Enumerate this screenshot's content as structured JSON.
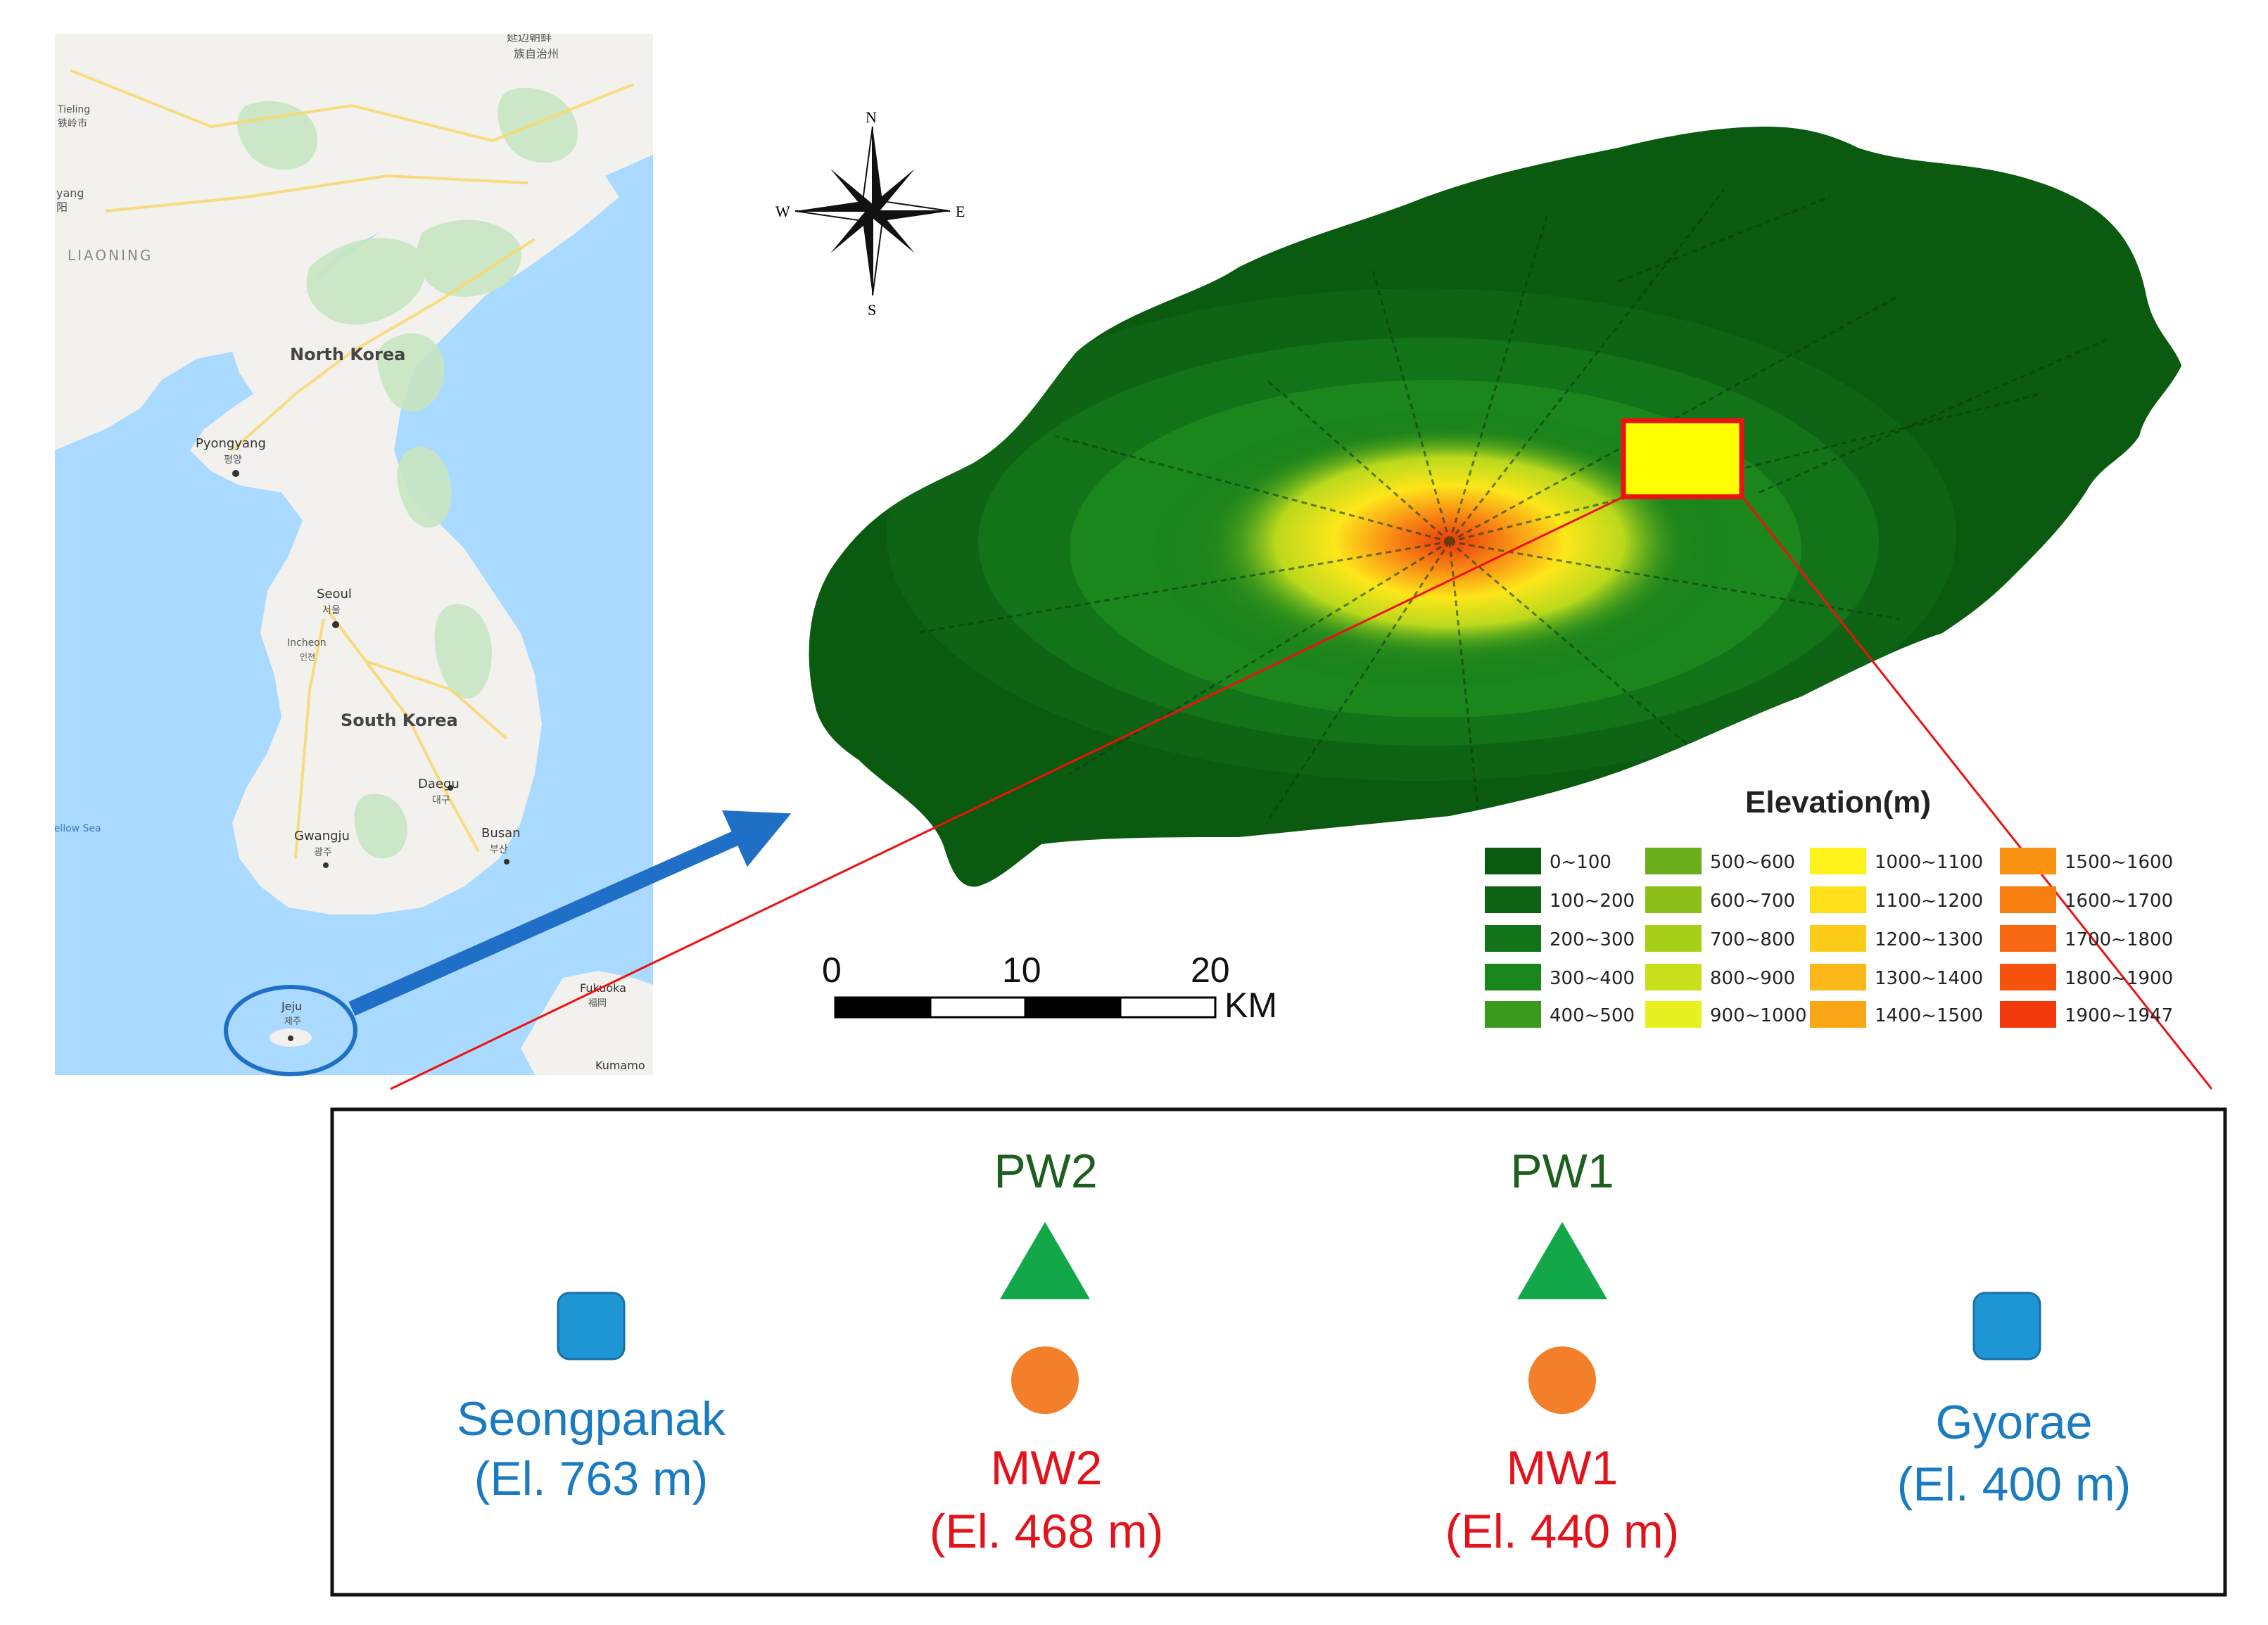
{
  "korea_map": {
    "labels": [
      {
        "key": "liaoning",
        "text": "LIAONING"
      },
      {
        "key": "tieling",
        "text": "Tieling"
      },
      {
        "key": "tieling_ko",
        "text": "铁岭市"
      },
      {
        "key": "yang",
        "text": "yang"
      },
      {
        "key": "yang_ko",
        "text": "阳"
      },
      {
        "key": "yanbian",
        "text": "延边朝鲜"
      },
      {
        "key": "yanbian2",
        "text": "族自治州"
      },
      {
        "key": "north_korea",
        "text": "North Korea"
      },
      {
        "key": "pyongyang",
        "text": "Pyongyang"
      },
      {
        "key": "pyongyang_ko",
        "text": "평양"
      },
      {
        "key": "seoul",
        "text": "Seoul"
      },
      {
        "key": "seoul_ko",
        "text": "서울"
      },
      {
        "key": "incheon",
        "text": "Incheon"
      },
      {
        "key": "incheon_ko",
        "text": "인천"
      },
      {
        "key": "south_korea",
        "text": "South Korea"
      },
      {
        "key": "daegu",
        "text": "Daegu"
      },
      {
        "key": "daegu_ko",
        "text": "대구"
      },
      {
        "key": "gwangju",
        "text": "Gwangju"
      },
      {
        "key": "gwangju_ko",
        "text": "광주"
      },
      {
        "key": "busan",
        "text": "Busan"
      },
      {
        "key": "busan_ko",
        "text": "부산"
      },
      {
        "key": "yellow_sea",
        "text": "Yellow Sea"
      },
      {
        "key": "jeju",
        "text": "Jeju"
      },
      {
        "key": "jeju_ko",
        "text": "제주"
      },
      {
        "key": "fukuoka",
        "text": "Fukuoka"
      },
      {
        "key": "fukuoka_ko",
        "text": "福岡"
      },
      {
        "key": "kumamoto",
        "text": "Kumamo"
      }
    ],
    "colors": {
      "sea": "#aadaff",
      "land": "#f2f1ee",
      "forest": "#c8e6c2",
      "road": "#f9d86b",
      "highlight": "#1f6fc6"
    }
  },
  "compass": {
    "n": "N",
    "s": "S",
    "e": "E",
    "w": "W"
  },
  "scale_bar": {
    "ticks": [
      "0",
      "10",
      "20"
    ],
    "unit": "KM"
  },
  "legend": {
    "title": "Elevation(m)",
    "classes": [
      {
        "label": "0~100",
        "color": "#0a5a10"
      },
      {
        "label": "100~200",
        "color": "#0e6414"
      },
      {
        "label": "200~300",
        "color": "#127318"
      },
      {
        "label": "300~400",
        "color": "#1a861c"
      },
      {
        "label": "400~500",
        "color": "#3a9a1e"
      },
      {
        "label": "500~600",
        "color": "#6aae1c"
      },
      {
        "label": "600~700",
        "color": "#8cbf1a"
      },
      {
        "label": "700~800",
        "color": "#a8cf18"
      },
      {
        "label": "800~900",
        "color": "#c8e01c"
      },
      {
        "label": "900~1000",
        "color": "#e8f020"
      },
      {
        "label": "1000~1100",
        "color": "#fef21a"
      },
      {
        "label": "1100~1200",
        "color": "#fee01a"
      },
      {
        "label": "1200~1300",
        "color": "#fdcc18"
      },
      {
        "label": "1300~1400",
        "color": "#fcb818"
      },
      {
        "label": "1400~1500",
        "color": "#fba616"
      },
      {
        "label": "1500~1600",
        "color": "#fa9314"
      },
      {
        "label": "1600~1700",
        "color": "#f97e12"
      },
      {
        "label": "1700~1800",
        "color": "#f76810"
      },
      {
        "label": "1800~1900",
        "color": "#f5520e"
      },
      {
        "label": "1900~1947",
        "color": "#f23a0c"
      }
    ]
  },
  "stations": [
    {
      "key": "seongpanak",
      "type": "rain",
      "name": "Seongpanak",
      "elev": "(El. 763 m)"
    },
    {
      "key": "pw2",
      "type": "pumping",
      "name": "PW2"
    },
    {
      "key": "mw2",
      "type": "monitoring",
      "name": "MW2",
      "elev": "(El. 468 m)"
    },
    {
      "key": "pw1",
      "type": "pumping",
      "name": "PW1"
    },
    {
      "key": "mw1",
      "type": "monitoring",
      "name": "MW1",
      "elev": "(El. 440 m)"
    },
    {
      "key": "gyorae",
      "type": "rain",
      "name": "Gyorae",
      "elev": "(El. 400 m)"
    }
  ],
  "colors": {
    "rain": "#1f96d4",
    "pumping": "#12a84a",
    "monitoring": "#f47f2b",
    "pw_text": "#1e5e1e",
    "mw_text": "#e3131b",
    "rain_text": "#1a7bc0",
    "study_area_fill": "#ffff00",
    "study_area_border": "#ee1111",
    "arrow": "#1f6fc6"
  }
}
